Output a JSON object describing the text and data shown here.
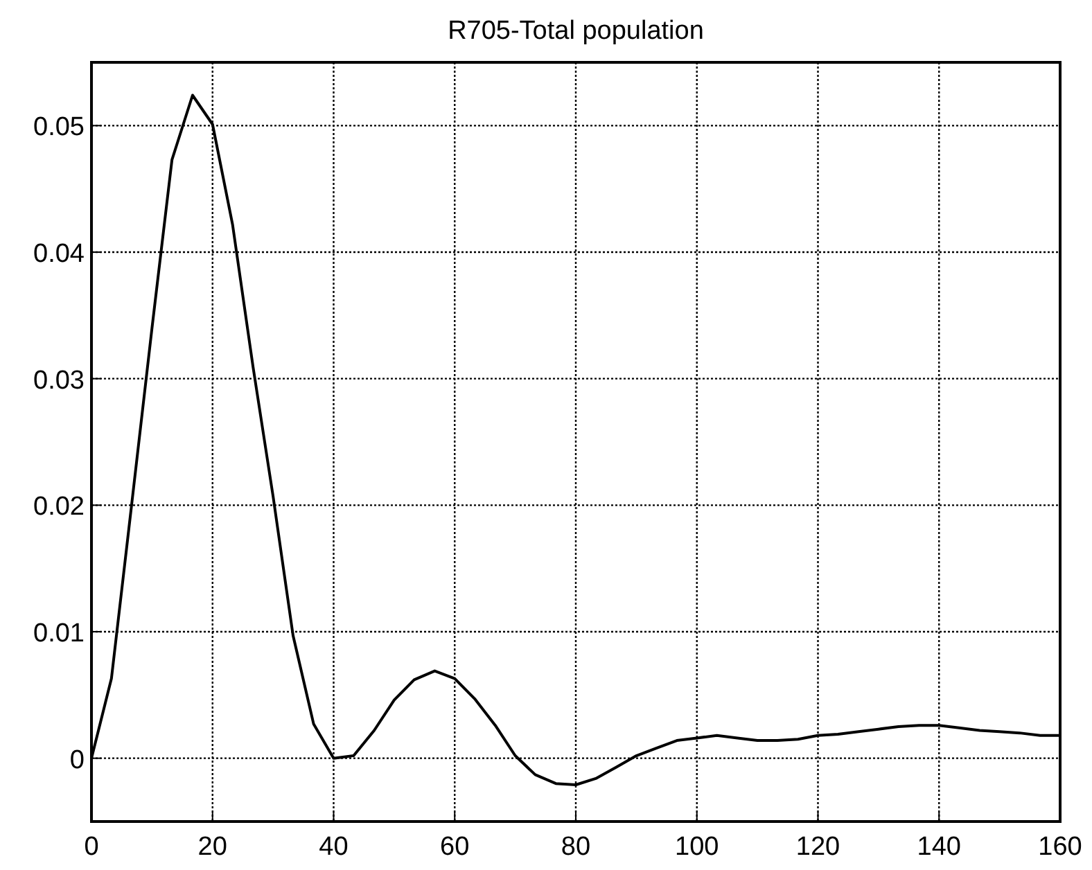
{
  "chart_data": {
    "type": "line",
    "title": "R705-Total population",
    "x": [
      0,
      3.3,
      6.7,
      10,
      13.3,
      16.7,
      20,
      23.3,
      26.7,
      30,
      33.3,
      36.7,
      40,
      43.3,
      46.7,
      50,
      53.3,
      56.7,
      60,
      63.3,
      66.7,
      70,
      73.3,
      76.7,
      80,
      83.3,
      86.7,
      90,
      93.3,
      96.7,
      100,
      103.3,
      106.7,
      110,
      113.3,
      116.7,
      120,
      123.3,
      126.7,
      130,
      133.3,
      136.7,
      140,
      143.3,
      146.7,
      150,
      153.3,
      156.7,
      160
    ],
    "series": [
      {
        "color": "#000000",
        "values": [
          0,
          0.0063,
          0.0203,
          0.034,
          0.0473,
          0.0524,
          0.0501,
          0.0422,
          0.0309,
          0.0207,
          0.0097,
          0.0027,
          0,
          0.0002,
          0.0022,
          0.0046,
          0.0062,
          0.0069,
          0.0063,
          0.0047,
          0.0026,
          0.0002,
          -0.0013,
          -0.002,
          -0.0021,
          -0.0016,
          -0.0007,
          0.0002,
          0.0008,
          0.0014,
          0.0016,
          0.0018,
          0.0016,
          0.0014,
          0.0014,
          0.0015,
          0.0018,
          0.0019,
          0.0021,
          0.0023,
          0.0025,
          0.0026,
          0.0026,
          0.0024,
          0.0022,
          0.0021,
          0.002,
          0.0018,
          0.0018
        ]
      }
    ],
    "xlim": [
      0,
      160
    ],
    "xticks": [
      0,
      20,
      40,
      60,
      80,
      100,
      120,
      140,
      160
    ],
    "ylim": [
      -0.005,
      0.055
    ],
    "yticks": [
      0,
      0.01,
      0.02,
      0.03,
      0.04,
      0.05
    ],
    "grid": true,
    "line_style": "solid",
    "marker": "none"
  }
}
